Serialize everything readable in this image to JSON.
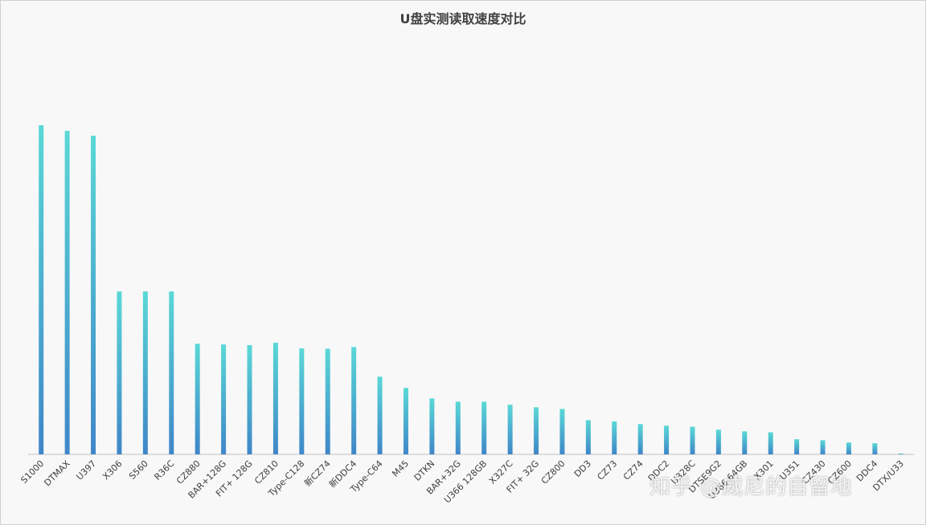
{
  "chart_data": {
    "type": "bar",
    "title": "U盘实测读取速度对比",
    "xlabel": "",
    "ylabel": "",
    "ylim": [
      0,
      100
    ],
    "grid": false,
    "legend": "none",
    "categories": [
      "S1000",
      "DTMAX",
      "U397",
      "X306",
      "S560",
      "R36C",
      "CZ880",
      "BAR+128G",
      "FIT+ 128G",
      "CZ810",
      "Type-C128",
      "新CZ74",
      "新DDC4",
      "Type-C64",
      "M45",
      "DTKN",
      "BAR+32G",
      "U366 128GB",
      "X327C",
      "FIT+ 32G",
      "CZ800",
      "DD3",
      "CZ73",
      "CZ74",
      "DDC2",
      "U328C",
      "DTSE9G2",
      "U366 64GB",
      "X301",
      "U351",
      "CZ430",
      "CZ600",
      "DDC4",
      "DTX/U33"
    ],
    "values": [
      100.0,
      98.3,
      96.8,
      49.5,
      49.5,
      49.5,
      33.6,
      33.4,
      33.2,
      33.9,
      32.2,
      32.1,
      32.6,
      23.6,
      20.2,
      17.0,
      16.0,
      16.0,
      15.1,
      14.3,
      13.8,
      10.4,
      10.0,
      9.2,
      8.7,
      8.4,
      7.5,
      7.0,
      6.7,
      4.6,
      4.3,
      3.6,
      3.4,
      0.2
    ]
  },
  "colors": {
    "bar_top": "#5ad8d6",
    "bar_bottom": "#3f86c8",
    "axis": "#bfbfbf"
  },
  "watermark": "知乎 @威尼的自留地"
}
